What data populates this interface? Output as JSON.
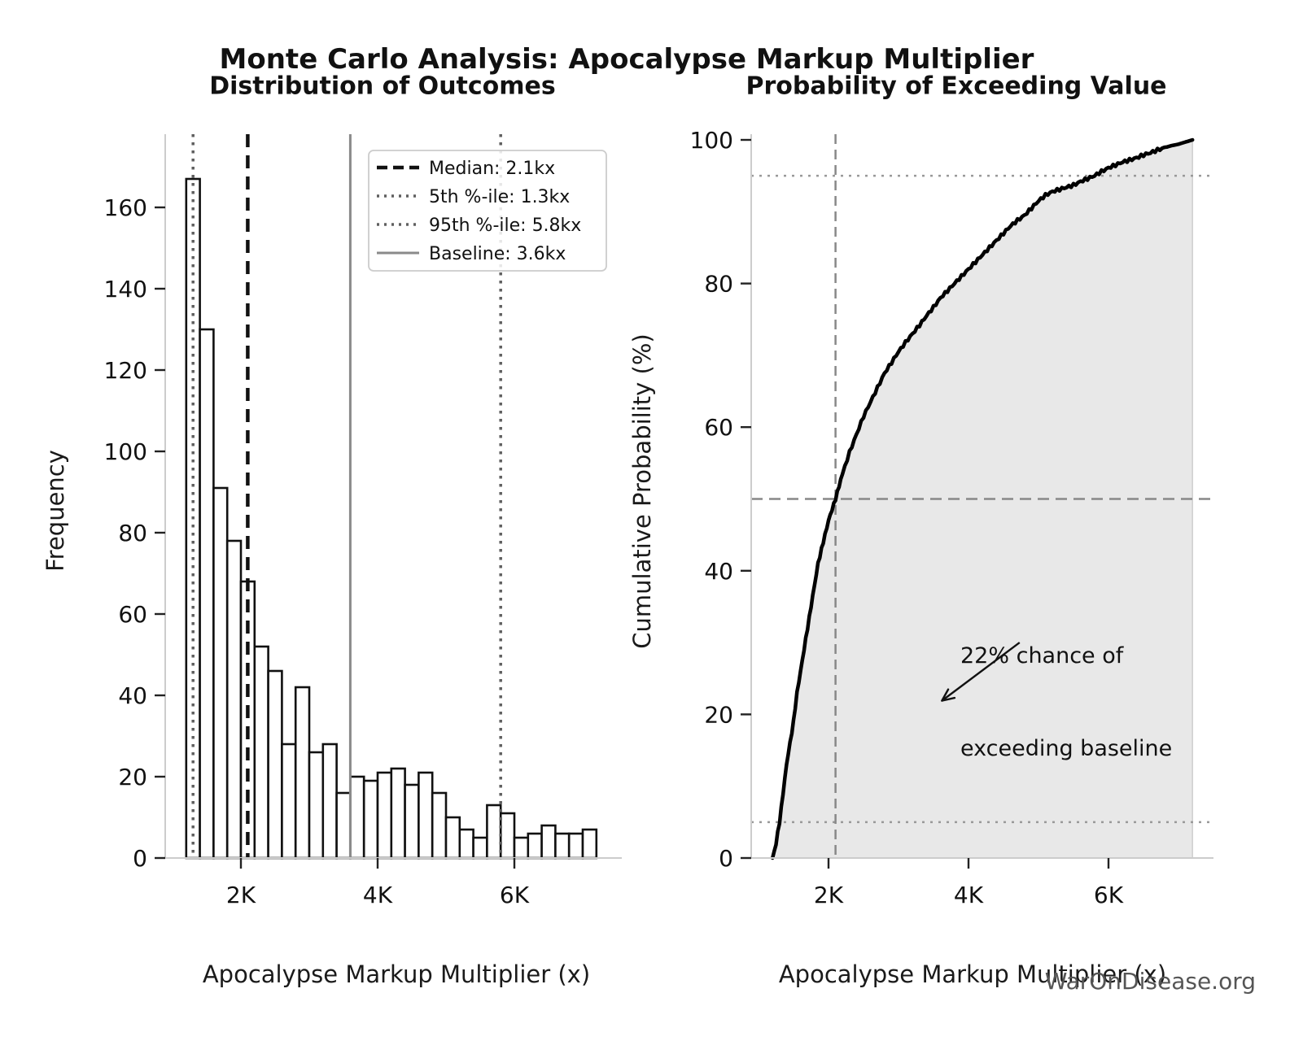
{
  "page": {
    "title": "Monte Carlo Analysis: Apocalypse Markup Multiplier",
    "footer": "WarOnDisease.org",
    "background": "#ffffff",
    "accent_gray": "#888888",
    "spine_color": "#cccccc"
  },
  "annotation": {
    "line1": "22% chance of",
    "line2": "exceeding baseline",
    "arrow_from": [
      4730,
      30.0
    ],
    "arrow_to": [
      3620,
      21.9
    ]
  },
  "chart_data": [
    {
      "type": "bar",
      "title": "Distribution of Outcomes",
      "xlabel": "Apocalypse Markup Multiplier (x)",
      "ylabel": "Frequency",
      "bin_start": 1200,
      "bin_width": 200,
      "values": [
        167,
        130,
        91,
        78,
        68,
        52,
        46,
        28,
        42,
        26,
        28,
        16,
        20,
        19,
        21,
        22,
        18,
        21,
        16,
        10,
        7,
        5,
        13,
        11,
        5,
        6,
        8,
        6,
        6,
        7
      ],
      "bar_fill": "#ffffff",
      "bar_edge": "#111111",
      "xlim": [
        880,
        7620
      ],
      "ylim": [
        0,
        178
      ],
      "grid": false,
      "xticks": [
        {
          "value": 2000,
          "label": "2K"
        },
        {
          "value": 4000,
          "label": "4K"
        },
        {
          "value": 6000,
          "label": "6K"
        }
      ],
      "yticks": [
        {
          "value": 0,
          "label": "0"
        },
        {
          "value": 20,
          "label": "20"
        },
        {
          "value": 40,
          "label": "40"
        },
        {
          "value": 60,
          "label": "60"
        },
        {
          "value": 80,
          "label": "80"
        },
        {
          "value": 100,
          "label": "100"
        },
        {
          "value": 120,
          "label": "120"
        },
        {
          "value": 140,
          "label": "140"
        },
        {
          "value": 160,
          "label": "160"
        }
      ],
      "ref_lines": [
        {
          "label": "Median: 2.1kx",
          "value": 2100,
          "style": "dashed",
          "color": "#111111",
          "width": 4.5
        },
        {
          "label": "5th %-ile: 1.3kx",
          "value": 1300,
          "style": "dotted",
          "color": "#5f5f5f",
          "width": 3.5
        },
        {
          "label": "95th %-ile: 5.8kx",
          "value": 5800,
          "style": "dotted",
          "color": "#5f5f5f",
          "width": 3.5
        },
        {
          "label": "Baseline: 3.6kx",
          "value": 3600,
          "style": "solid",
          "color": "#8a8a8a",
          "width": 3
        }
      ],
      "legend_position": "upper right"
    },
    {
      "type": "line",
      "title": "Probability of Exceeding Value",
      "xlabel": "Apocalypse Markup Multiplier (x)",
      "ylabel": "Cumulative Probability (%)",
      "line_color": "#000000",
      "fill_color": "#e8e8e8",
      "fill_under": true,
      "xlim": [
        880,
        7620
      ],
      "ylim": [
        0,
        100
      ],
      "grid": false,
      "xticks": [
        {
          "value": 2000,
          "label": "2K"
        },
        {
          "value": 4000,
          "label": "4K"
        },
        {
          "value": 6000,
          "label": "6K"
        }
      ],
      "yticks": [
        {
          "value": 0,
          "label": "0"
        },
        {
          "value": 20,
          "label": "20"
        },
        {
          "value": 40,
          "label": "40"
        },
        {
          "value": 60,
          "label": "60"
        },
        {
          "value": 80,
          "label": "80"
        },
        {
          "value": 100,
          "label": "100"
        }
      ],
      "points": [
        [
          1200,
          0
        ],
        [
          1250,
          2
        ],
        [
          1300,
          5
        ],
        [
          1350,
          9
        ],
        [
          1400,
          13
        ],
        [
          1450,
          16
        ],
        [
          1500,
          19
        ],
        [
          1550,
          23
        ],
        [
          1600,
          26
        ],
        [
          1650,
          29
        ],
        [
          1700,
          32
        ],
        [
          1750,
          35
        ],
        [
          1800,
          38
        ],
        [
          1850,
          41
        ],
        [
          1900,
          43
        ],
        [
          1950,
          45
        ],
        [
          2000,
          47
        ],
        [
          2050,
          48.5
        ],
        [
          2100,
          50
        ],
        [
          2150,
          51.8
        ],
        [
          2200,
          53.5
        ],
        [
          2300,
          56.5
        ],
        [
          2400,
          59
        ],
        [
          2500,
          61.5
        ],
        [
          2600,
          63.5
        ],
        [
          2700,
          65.5
        ],
        [
          2800,
          67.5
        ],
        [
          2900,
          69
        ],
        [
          3000,
          70.5
        ],
        [
          3100,
          71.8
        ],
        [
          3200,
          73
        ],
        [
          3300,
          74.2
        ],
        [
          3400,
          75.5
        ],
        [
          3500,
          76.7
        ],
        [
          3600,
          78
        ],
        [
          3700,
          79
        ],
        [
          3800,
          80
        ],
        [
          3900,
          81
        ],
        [
          4000,
          82
        ],
        [
          4100,
          83
        ],
        [
          4200,
          84
        ],
        [
          4300,
          85
        ],
        [
          4400,
          86
        ],
        [
          4500,
          87
        ],
        [
          4600,
          88
        ],
        [
          4700,
          88.8
        ],
        [
          4800,
          89.5
        ],
        [
          4900,
          90.5
        ],
        [
          5000,
          91.5
        ],
        [
          5100,
          92.3
        ],
        [
          5200,
          92.8
        ],
        [
          5300,
          93.1
        ],
        [
          5400,
          93.4
        ],
        [
          5500,
          93.7
        ],
        [
          5600,
          94.2
        ],
        [
          5700,
          94.6
        ],
        [
          5800,
          95
        ],
        [
          5900,
          95.6
        ],
        [
          6000,
          96.1
        ],
        [
          6100,
          96.5
        ],
        [
          6200,
          96.9
        ],
        [
          6300,
          97.2
        ],
        [
          6400,
          97.5
        ],
        [
          6500,
          97.9
        ],
        [
          6600,
          98.2
        ],
        [
          6700,
          98.6
        ],
        [
          6800,
          98.9
        ],
        [
          6900,
          99.2
        ],
        [
          7000,
          99.4
        ],
        [
          7100,
          99.7
        ],
        [
          7200,
          100
        ]
      ],
      "vlines": [
        {
          "value": 2100,
          "style": "dashed",
          "color": "#888888",
          "width": 2.5
        }
      ],
      "hlines": [
        {
          "value": 50,
          "style": "dashed",
          "color": "#888888",
          "width": 2.5
        },
        {
          "value": 95,
          "style": "dotted",
          "color": "#999999",
          "width": 2.5
        },
        {
          "value": 5,
          "style": "dotted",
          "color": "#999999",
          "width": 2.5
        }
      ]
    }
  ]
}
